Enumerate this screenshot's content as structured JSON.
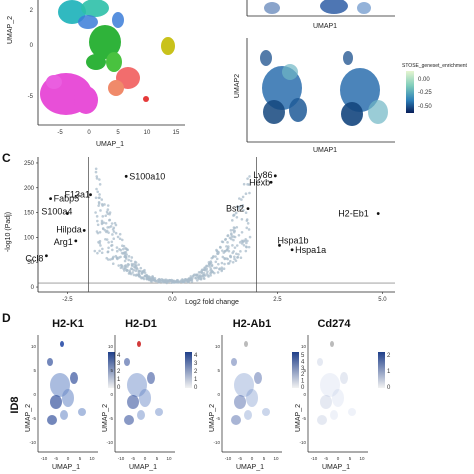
{
  "panel_c_letter": "C",
  "panel_d_letter": "D",
  "top_left_umap": {
    "xlabel": "UMAP_1",
    "ylabel": "UMAP_2",
    "x_ticks": [
      "-5",
      "0",
      "5",
      "10",
      "15"
    ],
    "y_ticks": [
      "2",
      "0",
      "-5"
    ]
  },
  "top_right_small": {
    "xlabel": "UMAP1"
  },
  "enrichment_umap": {
    "xlabel": "UMAP1",
    "ylabel": "UMAP2",
    "legend_title": "STOSE_geneset_enrichment",
    "legend_ticks": [
      "0.00",
      "-0.25",
      "-0.50"
    ]
  },
  "chart_data": {
    "type": "scatter",
    "xlabel": "Log2 fold change",
    "ylabel": "-log10 (Padj)",
    "xlim": [
      -3.2,
      5.3
    ],
    "ylim": [
      -10,
      262
    ],
    "x_ticks": [
      "-2.5",
      "0.0",
      "2.5",
      "5.0"
    ],
    "y_ticks": [
      "250",
      "200",
      "150",
      "100",
      "50",
      "0"
    ],
    "vlines": [
      -2.0,
      2.0
    ],
    "labeled_points": [
      {
        "name": "F13a1",
        "x": -1.95,
        "y": 178
      },
      {
        "name": "S100a10",
        "x": -1.1,
        "y": 215
      },
      {
        "name": "Fabp5",
        "x": -2.9,
        "y": 170
      },
      {
        "name": "S100a4",
        "x": -2.5,
        "y": 140
      },
      {
        "name": "Hilpda",
        "x": -2.1,
        "y": 106
      },
      {
        "name": "Arg1",
        "x": -2.3,
        "y": 85
      },
      {
        "name": "Ccl8",
        "x": -3.0,
        "y": 55
      },
      {
        "name": "Ly86",
        "x": 2.45,
        "y": 216
      },
      {
        "name": "Hexb",
        "x": 2.35,
        "y": 203
      },
      {
        "name": "Bst2",
        "x": 1.8,
        "y": 150
      },
      {
        "name": "H2-Eb1",
        "x": 4.9,
        "y": 140
      },
      {
        "name": "Hspa1b",
        "x": 2.55,
        "y": 76
      },
      {
        "name": "Hspa1a",
        "x": 2.85,
        "y": 67
      }
    ]
  },
  "panel_d": {
    "row_label": "ID8",
    "xlabel": "UMAP_1",
    "ylabel": "UMAP_2",
    "x_ticks": [
      "-10",
      "-5",
      "0",
      "5",
      "10"
    ],
    "y_ticks": [
      "10",
      "5",
      "0",
      "-5",
      "-10"
    ],
    "plots": [
      {
        "title": "H2-K1",
        "legend_ticks": [
          "4",
          "3",
          "2",
          "1",
          "0"
        ]
      },
      {
        "title": "H2-D1",
        "legend_ticks": [
          "4",
          "3",
          "2",
          "1",
          "0"
        ]
      },
      {
        "title": "H2-Ab1",
        "legend_ticks": [
          "5",
          "4",
          "3",
          "2",
          "1",
          "0"
        ]
      },
      {
        "title": "Cd274",
        "legend_ticks": [
          "2",
          "1",
          "0"
        ]
      }
    ]
  }
}
